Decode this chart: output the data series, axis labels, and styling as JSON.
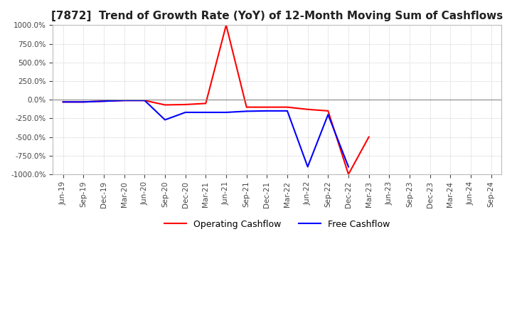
{
  "title": "[7872]  Trend of Growth Rate (YoY) of 12-Month Moving Sum of Cashflows",
  "title_fontsize": 11,
  "ylim": [
    -1000,
    1000
  ],
  "yticks": [
    -1000,
    -750,
    -500,
    -250,
    0,
    250,
    500,
    750,
    1000
  ],
  "background_color": "#ffffff",
  "grid_color": "#bbbbbb",
  "operating_color": "#ff0000",
  "free_color": "#0000ff",
  "x_labels": [
    "Jun-19",
    "Sep-19",
    "Dec-19",
    "Mar-20",
    "Jun-20",
    "Sep-20",
    "Dec-20",
    "Mar-21",
    "Jun-21",
    "Sep-21",
    "Dec-21",
    "Mar-22",
    "Jun-22",
    "Sep-22",
    "Dec-22",
    "Mar-23",
    "Jun-23",
    "Sep-23",
    "Dec-23",
    "Mar-24",
    "Jun-24",
    "Sep-24"
  ],
  "operating_cashflow": [
    -30,
    -30,
    -20,
    -10,
    -10,
    -70,
    -65,
    -50,
    1000,
    -100,
    -100,
    -100,
    -130,
    -150,
    -1000,
    -500,
    null,
    null,
    null,
    null,
    null,
    null
  ],
  "free_cashflow": [
    -30,
    -30,
    -20,
    -10,
    -10,
    -270,
    -170,
    -170,
    -170,
    -155,
    -150,
    -150,
    -900,
    -200,
    -900,
    null,
    null,
    null,
    null,
    null,
    null,
    null
  ]
}
